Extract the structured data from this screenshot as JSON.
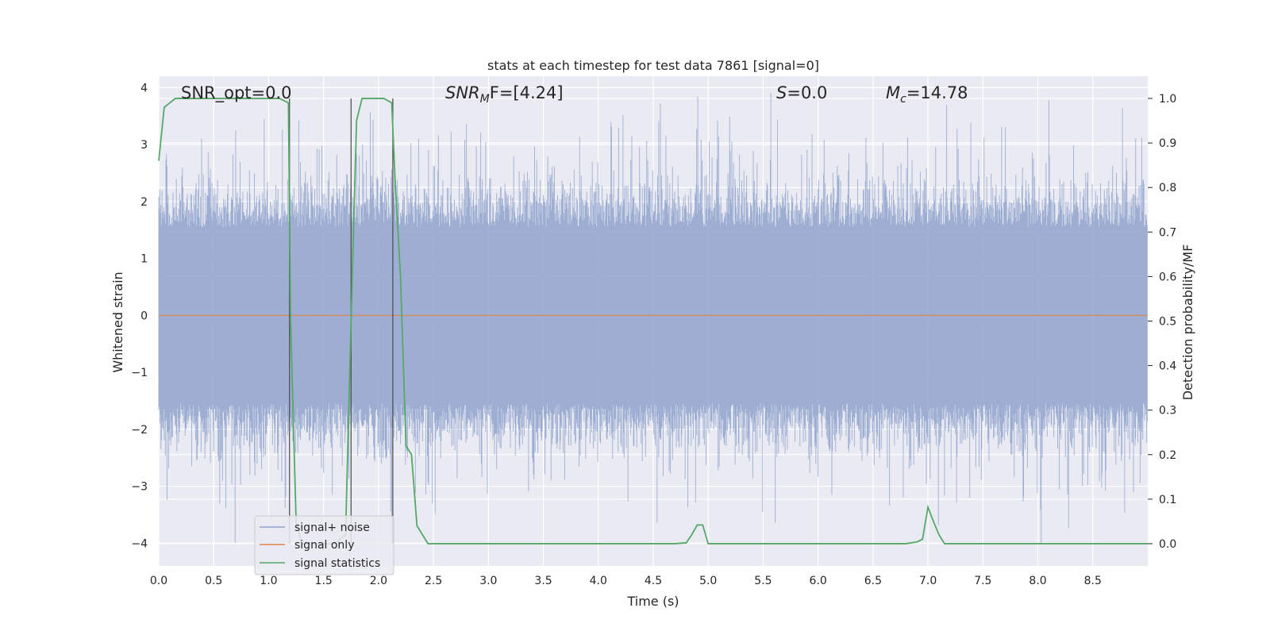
{
  "chart_data": {
    "type": "line",
    "title": "stats at each timestep for test data 7861 [signal=0]",
    "xlabel": "Time (s)",
    "ylabel": "Whitened strain",
    "y2label": "Detection probability/MF",
    "xlim": [
      0,
      9.0
    ],
    "ylim": [
      -4.4,
      4.2
    ],
    "y2lim": [
      -0.05,
      1.05
    ],
    "xticks": [
      "0.0",
      "0.5",
      "1.0",
      "1.5",
      "2.0",
      "2.5",
      "3.0",
      "3.5",
      "4.0",
      "4.5",
      "5.0",
      "5.5",
      "6.0",
      "6.5",
      "7.0",
      "7.5",
      "8.0",
      "8.5"
    ],
    "yticks": [
      "−4",
      "−3",
      "−2",
      "−1",
      "0",
      "1",
      "2",
      "3",
      "4"
    ],
    "y2ticks": [
      "0.0",
      "0.1",
      "0.2",
      "0.3",
      "0.4",
      "0.5",
      "0.6",
      "0.7",
      "0.8",
      "0.9",
      "1.0"
    ],
    "grid": true,
    "legend_position": "lower-left",
    "annotations": {
      "snr_opt": "SNR_opt=0.0",
      "snr_mf_sym": "SNR",
      "snr_mf_sub": "M",
      "snr_mf_rest": "F=[4.24]",
      "s_sym": "S",
      "s_rest": "=0.0",
      "mc_sym": "M",
      "mc_sub": "c",
      "mc_rest": "=14.78"
    },
    "series": [
      {
        "name": "signal+ noise",
        "color": "#8fa3cc",
        "description_values": "white noise, amplitude approx ±2 (peaks to ±4)"
      },
      {
        "name": "signal only",
        "color": "#dd8452",
        "values_constant": 0.0
      },
      {
        "name": "signal statistics",
        "color": "#55a868",
        "x": [
          0.0,
          0.05,
          0.1,
          0.15,
          0.2,
          0.3,
          0.5,
          0.8,
          1.0,
          1.1,
          1.18,
          1.2,
          1.25,
          1.3,
          1.6,
          1.7,
          1.75,
          1.8,
          1.85,
          1.9,
          2.0,
          2.05,
          2.12,
          2.15,
          2.2,
          2.25,
          2.3,
          2.35,
          2.4,
          2.45,
          3.0,
          4.0,
          4.7,
          4.8,
          4.85,
          4.9,
          4.95,
          5.0,
          6.0,
          6.8,
          6.9,
          6.95,
          7.0,
          7.05,
          7.1,
          7.15,
          8.0,
          9.0
        ],
        "y": [
          0.86,
          0.98,
          0.99,
          1.0,
          1.0,
          1.0,
          1.0,
          1.0,
          1.0,
          1.0,
          0.99,
          0.5,
          0.05,
          0.0,
          0.0,
          0.02,
          0.5,
          0.95,
          1.0,
          1.0,
          1.0,
          1.0,
          0.99,
          0.82,
          0.6,
          0.22,
          0.2,
          0.04,
          0.02,
          0.0,
          0.0,
          0.0,
          0.0,
          0.002,
          0.02,
          0.042,
          0.042,
          0.0,
          0.0,
          0.0,
          0.004,
          0.01,
          0.082,
          0.05,
          0.02,
          0.0,
          0.0,
          0.0
        ]
      }
    ],
    "vlines": [
      1.19,
      1.75,
      2.13
    ]
  }
}
